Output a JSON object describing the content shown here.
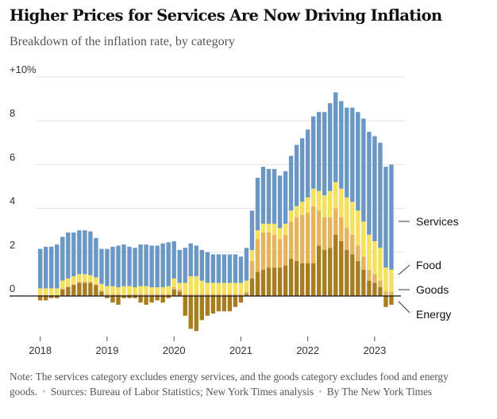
{
  "chart_data": {
    "type": "bar",
    "stacked": true,
    "title": "Higher Prices for Services Are Now Driving Inflation",
    "subtitle": "Breakdown of the inflation rate, by category",
    "y_tick_labels": [
      "0",
      "2",
      "4",
      "6",
      "8",
      "+10%"
    ],
    "y_ticks": [
      0,
      2,
      4,
      6,
      8,
      10
    ],
    "ylim": [
      -1.7,
      10
    ],
    "x_tick_labels": [
      "2018",
      "2019",
      "2020",
      "2021",
      "2022",
      "2023"
    ],
    "x_start": "2018-01",
    "grid": true,
    "legend": "right, labels at the last bar",
    "colors": {
      "Energy": "#a87d22",
      "Goods": "#e6b45e",
      "Food": "#f5e15e",
      "Services": "#6a97c4"
    },
    "series": [
      {
        "name": "Energy",
        "values": [
          -0.2,
          -0.2,
          -0.1,
          -0.1,
          0.3,
          0.4,
          0.5,
          0.6,
          0.6,
          0.6,
          0.5,
          0.2,
          -0.1,
          -0.3,
          -0.4,
          -0.1,
          -0.1,
          -0.1,
          -0.3,
          -0.4,
          -0.3,
          -0.2,
          -0.3,
          -0.1,
          0.3,
          0.2,
          -0.9,
          -1.5,
          -1.6,
          -1.1,
          -0.9,
          -0.8,
          -0.7,
          -0.7,
          -0.7,
          -0.5,
          -0.3,
          0.1,
          0.8,
          1.1,
          1.2,
          1.3,
          1.3,
          1.3,
          1.4,
          1.7,
          1.6,
          1.5,
          1.5,
          1.5,
          2.3,
          2.1,
          2.2,
          2.8,
          2.5,
          2.1,
          1.9,
          1.6,
          1.2,
          0.7,
          0.6,
          0.4,
          -0.5,
          -0.4
        ]
      },
      {
        "name": "Goods",
        "values": [
          0.05,
          0.05,
          0.05,
          0.05,
          0.05,
          0.05,
          0.05,
          0.05,
          0.05,
          0.05,
          0.05,
          0.05,
          0.1,
          0.1,
          0.1,
          0.05,
          0.1,
          0.1,
          0.1,
          0.1,
          0.1,
          0.1,
          0.1,
          0.1,
          0.1,
          0.1,
          0.1,
          0.1,
          0.1,
          0.1,
          0.1,
          0.1,
          0.1,
          0.1,
          0.1,
          0.1,
          0.1,
          0.1,
          0.8,
          1.5,
          1.7,
          1.6,
          1.5,
          1.3,
          1.4,
          1.7,
          2.0,
          2.2,
          2.3,
          2.6,
          1.6,
          1.5,
          1.4,
          1.2,
          1.1,
          1.0,
          0.9,
          0.7,
          0.6,
          0.5,
          0.4,
          0.3,
          0.2,
          0.2
        ]
      },
      {
        "name": "Food",
        "values": [
          0.3,
          0.3,
          0.3,
          0.3,
          0.35,
          0.35,
          0.35,
          0.35,
          0.35,
          0.3,
          0.3,
          0.3,
          0.35,
          0.35,
          0.3,
          0.4,
          0.35,
          0.3,
          0.35,
          0.35,
          0.3,
          0.3,
          0.3,
          0.35,
          0.4,
          0.3,
          0.5,
          0.8,
          0.8,
          0.6,
          0.5,
          0.5,
          0.5,
          0.5,
          0.5,
          0.5,
          0.5,
          0.5,
          0.5,
          0.4,
          0.4,
          0.4,
          0.5,
          0.5,
          0.5,
          0.5,
          0.5,
          0.6,
          0.7,
          0.8,
          0.9,
          1.0,
          1.2,
          1.2,
          1.3,
          1.4,
          1.5,
          1.6,
          1.6,
          1.6,
          1.5,
          1.5,
          1.1,
          1.0
        ]
      },
      {
        "name": "Services",
        "values": [
          1.8,
          1.9,
          1.9,
          2.0,
          2.0,
          2.1,
          2.0,
          2.0,
          2.0,
          2.0,
          1.8,
          1.6,
          1.7,
          1.8,
          1.9,
          1.9,
          1.8,
          1.8,
          1.9,
          1.9,
          1.9,
          1.9,
          2.0,
          2.0,
          1.7,
          1.5,
          1.6,
          1.5,
          1.4,
          1.4,
          1.4,
          1.3,
          1.3,
          1.3,
          1.3,
          1.3,
          1.2,
          1.5,
          1.8,
          2.4,
          2.6,
          2.5,
          2.5,
          2.4,
          2.4,
          2.5,
          2.8,
          2.9,
          3.1,
          3.3,
          3.6,
          3.8,
          4.0,
          4.1,
          4.0,
          4.1,
          4.3,
          4.5,
          4.7,
          4.7,
          4.8,
          4.8,
          4.6,
          4.8
        ]
      }
    ],
    "series_labels": {
      "services": "Services",
      "food": "Food",
      "goods": "Goods",
      "energy": "Energy"
    }
  },
  "note": {
    "text": "Note: The services category excludes energy services, and the goods category excludes food and energy goods.",
    "sources": "Sources: Bureau of Labor Statistics; New York Times analysis",
    "byline": "By The New York Times"
  }
}
